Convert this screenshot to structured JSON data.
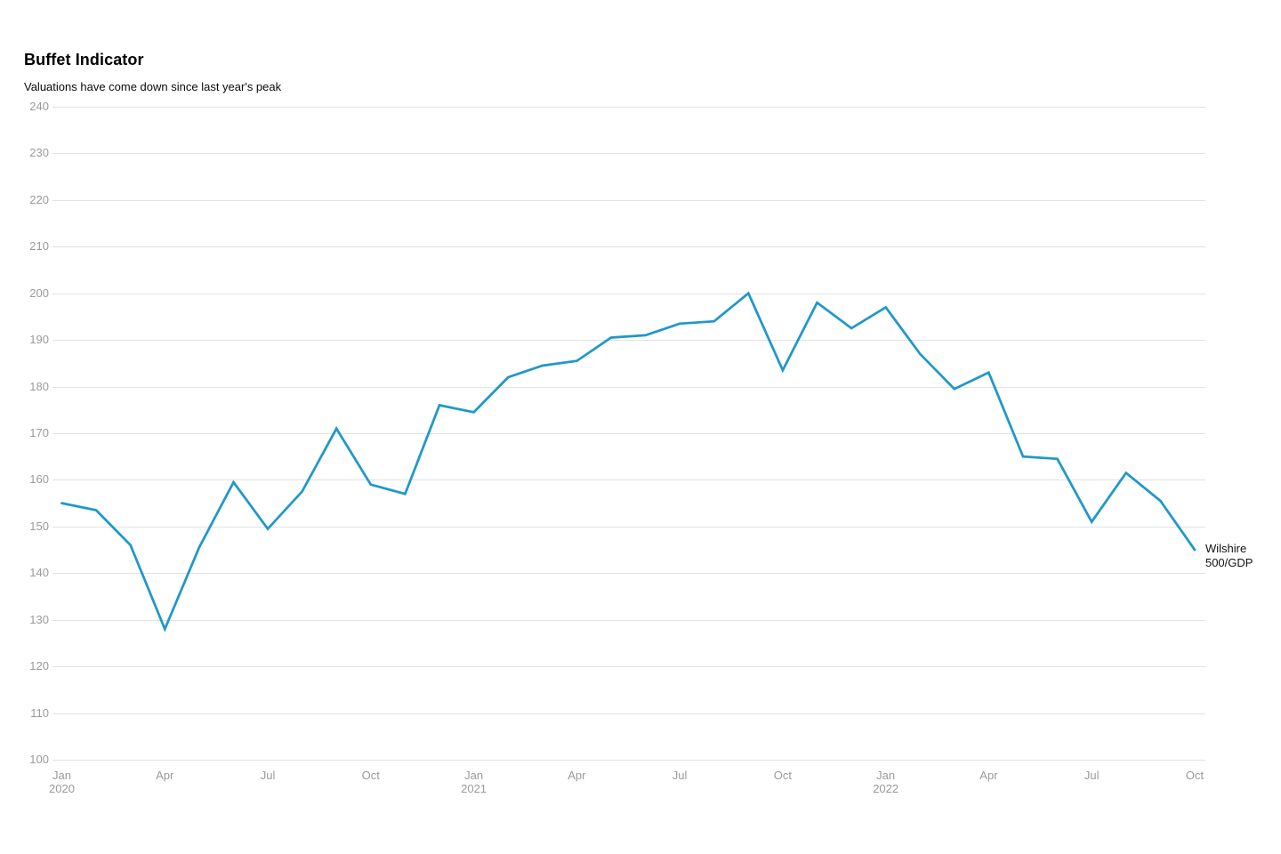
{
  "header": {
    "title": "Buffet Indicator",
    "subtitle": "Valuations have come down since last year's peak"
  },
  "annotation": {
    "lines": [
      "Wilshire",
      "500/GDP"
    ]
  },
  "chart_data": {
    "type": "line",
    "title": "Buffet Indicator",
    "subtitle": "Valuations have come down since last year's peak",
    "x": [
      "Jan 2020",
      "Feb 2020",
      "Mar 2020",
      "Apr 2020",
      "May 2020",
      "Jun 2020",
      "Jul 2020",
      "Aug 2020",
      "Sep 2020",
      "Oct 2020",
      "Nov 2020",
      "Dec 2020",
      "Jan 2021",
      "Feb 2021",
      "Mar 2021",
      "Apr 2021",
      "May 2021",
      "Jun 2021",
      "Jul 2021",
      "Aug 2021",
      "Sep 2021",
      "Oct 2021",
      "Nov 2021",
      "Dec 2021",
      "Jan 2022",
      "Feb 2022",
      "Mar 2022",
      "Apr 2022",
      "May 2022",
      "Jun 2022",
      "Jul 2022",
      "Aug 2022",
      "Sep 2022",
      "Oct 2022"
    ],
    "series": [
      {
        "name": "Wilshire 500/GDP",
        "values": [
          155,
          153.5,
          146,
          128,
          145.5,
          159.5,
          149.5,
          157.5,
          171,
          159,
          157,
          176,
          174.5,
          182,
          184.5,
          185.5,
          190.5,
          191,
          193.5,
          194,
          200,
          183.5,
          198,
          192.5,
          197,
          187,
          179.5,
          183,
          165,
          164.5,
          151,
          161.5,
          155.5,
          145
        ]
      }
    ],
    "ylim": [
      100,
      240
    ],
    "ytick_step": 10,
    "yticks": [
      100,
      110,
      120,
      130,
      140,
      150,
      160,
      170,
      180,
      190,
      200,
      210,
      220,
      230,
      240
    ],
    "xticks": [
      {
        "index": 0,
        "label": "Jan",
        "year": "2020"
      },
      {
        "index": 3,
        "label": "Apr"
      },
      {
        "index": 6,
        "label": "Jul"
      },
      {
        "index": 9,
        "label": "Oct"
      },
      {
        "index": 12,
        "label": "Jan",
        "year": "2021"
      },
      {
        "index": 15,
        "label": "Apr"
      },
      {
        "index": 18,
        "label": "Jul"
      },
      {
        "index": 21,
        "label": "Oct"
      },
      {
        "index": 24,
        "label": "Jan",
        "year": "2022"
      },
      {
        "index": 27,
        "label": "Apr"
      },
      {
        "index": 30,
        "label": "Jul"
      },
      {
        "index": 33,
        "label": "Oct"
      }
    ],
    "grid": "horizontal",
    "legend_position": "right-of-line-end",
    "colors": {
      "line": "#1f98c9",
      "grid": "#e2e2e2",
      "axis_label": "#9a9a9a",
      "text": "#000000",
      "background": "#ffffff"
    }
  }
}
